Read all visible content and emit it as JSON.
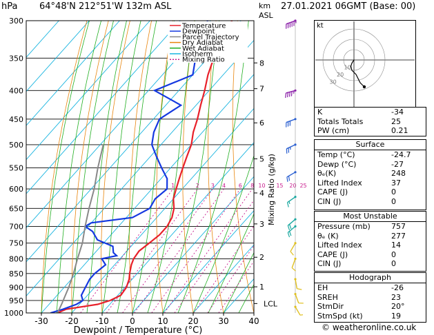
{
  "header": {
    "hpa_label": "hPa",
    "location": "64°48'N  212°51'W  132m  ASL",
    "km_label": "km",
    "asl_label": "ASL",
    "datetime": "27.01.2021  06GMT  (Base: 00)"
  },
  "chart_data": {
    "type": "line",
    "title": "Skew-T log-P diagram",
    "xlabel": "Dewpoint / Temperature (°C)",
    "ylabel": "hPa",
    "right_axis_label": "Mixing Ratio (g/kg)",
    "xlim": [
      -35,
      40
    ],
    "ylim": [
      1000,
      300
    ],
    "x_ticks": [
      -30,
      -20,
      -10,
      0,
      10,
      20,
      30,
      40
    ],
    "pressure_levels": [
      300,
      350,
      400,
      450,
      500,
      550,
      600,
      650,
      700,
      750,
      800,
      850,
      900,
      950,
      1000
    ],
    "km_ticks": [
      {
        "label": "8",
        "p": 357
      },
      {
        "label": "7",
        "p": 397
      },
      {
        "label": "6",
        "p": 457
      },
      {
        "label": "5",
        "p": 530
      },
      {
        "label": "4",
        "p": 610
      },
      {
        "label": "3",
        "p": 693
      },
      {
        "label": "2",
        "p": 795
      },
      {
        "label": "1",
        "p": 898
      },
      {
        "label": "LCL",
        "p": 962
      }
    ],
    "mixing_ratio_labels": [
      "1",
      "2",
      "3",
      "4",
      "6",
      "8",
      "10",
      "15",
      "20",
      "25"
    ],
    "mixing_ratio_values": [
      1,
      2,
      3,
      4,
      6,
      8,
      10,
      15,
      20,
      25
    ],
    "legend": [
      {
        "name": "Temperature",
        "color": "#e8202a"
      },
      {
        "name": "Dewpoint",
        "color": "#1438e0"
      },
      {
        "name": "Parcel Trajectory",
        "color": "#888888"
      },
      {
        "name": "Dry Adiabat",
        "color": "#e8850c"
      },
      {
        "name": "Wet Adiabat",
        "color": "#1fae1f"
      },
      {
        "name": "Isotherm",
        "color": "#19b5e0"
      },
      {
        "name": "Mixing Ratio",
        "color": "#c8188c"
      }
    ],
    "series": [
      {
        "name": "Temperature",
        "color": "#e8202a",
        "points": [
          [
            1000,
            -24.7
          ],
          [
            985,
            -23
          ],
          [
            965,
            -14
          ],
          [
            950,
            -11
          ],
          [
            930,
            -9
          ],
          [
            900,
            -9.5
          ],
          [
            870,
            -11
          ],
          [
            850,
            -12.5
          ],
          [
            820,
            -14.5
          ],
          [
            800,
            -15.5
          ],
          [
            775,
            -16
          ],
          [
            750,
            -15
          ],
          [
            725,
            -14
          ],
          [
            700,
            -14
          ],
          [
            675,
            -15
          ],
          [
            650,
            -17
          ],
          [
            625,
            -20
          ],
          [
            600,
            -22
          ],
          [
            575,
            -24
          ],
          [
            550,
            -26
          ],
          [
            525,
            -28
          ],
          [
            500,
            -30
          ],
          [
            475,
            -33
          ],
          [
            450,
            -35.5
          ],
          [
            425,
            -38.5
          ],
          [
            400,
            -41.5
          ],
          [
            375,
            -45
          ],
          [
            350,
            -48
          ],
          [
            325,
            -51
          ],
          [
            300,
            -53
          ]
        ]
      },
      {
        "name": "Dewpoint",
        "color": "#1438e0",
        "points": [
          [
            1000,
            -27
          ],
          [
            985,
            -24
          ],
          [
            965,
            -21
          ],
          [
            950,
            -20
          ],
          [
            930,
            -22
          ],
          [
            900,
            -23
          ],
          [
            870,
            -24
          ],
          [
            850,
            -24
          ],
          [
            820,
            -23
          ],
          [
            800,
            -26
          ],
          [
            790,
            -22
          ],
          [
            780,
            -24
          ],
          [
            760,
            -26
          ],
          [
            740,
            -33
          ],
          [
            715,
            -37
          ],
          [
            700,
            -41
          ],
          [
            690,
            -40
          ],
          [
            675,
            -28
          ],
          [
            650,
            -25
          ],
          [
            625,
            -26
          ],
          [
            600,
            -25
          ],
          [
            575,
            -28
          ],
          [
            550,
            -33
          ],
          [
            525,
            -38
          ],
          [
            500,
            -43
          ],
          [
            475,
            -46
          ],
          [
            450,
            -48
          ],
          [
            425,
            -45
          ],
          [
            400,
            -58
          ],
          [
            375,
            -50
          ],
          [
            350,
            -54
          ],
          [
            325,
            -58
          ],
          [
            300,
            -61
          ]
        ]
      },
      {
        "name": "Parcel Trajectory",
        "color": "#888888",
        "points": [
          [
            1000,
            -24.7
          ],
          [
            962,
            -26
          ],
          [
            900,
            -28.5
          ],
          [
            850,
            -31
          ],
          [
            800,
            -34
          ],
          [
            750,
            -37
          ],
          [
            700,
            -41
          ],
          [
            650,
            -45
          ],
          [
            600,
            -49
          ],
          [
            550,
            -54
          ],
          [
            500,
            -59
          ]
        ]
      }
    ]
  },
  "wind_profile": [
    {
      "p": 300,
      "dir": 250,
      "spd": 55
    },
    {
      "p": 400,
      "dir": 255,
      "spd": 45
    },
    {
      "p": 450,
      "dir": 250,
      "spd": 30
    },
    {
      "p": 500,
      "dir": 245,
      "spd": 25
    },
    {
      "p": 560,
      "dir": 240,
      "spd": 20
    },
    {
      "p": 620,
      "dir": 235,
      "spd": 15
    },
    {
      "p": 680,
      "dir": 230,
      "spd": 20
    },
    {
      "p": 700,
      "dir": 230,
      "spd": 20
    },
    {
      "p": 750,
      "dir": 210,
      "spd": 10
    },
    {
      "p": 800,
      "dir": 200,
      "spd": 10
    },
    {
      "p": 870,
      "dir": 170,
      "spd": 10
    },
    {
      "p": 925,
      "dir": 160,
      "spd": 10
    },
    {
      "p": 975,
      "dir": 150,
      "spd": 5
    }
  ],
  "hodograph": {
    "label": "kt",
    "ring_labels": [
      "10",
      "20",
      "30"
    ],
    "points": [
      [
        0,
        0
      ],
      [
        -2,
        -3
      ],
      [
        -3,
        -6
      ],
      [
        -2,
        -10
      ],
      [
        2,
        -14
      ],
      [
        4,
        -18
      ],
      [
        6,
        -22
      ],
      [
        10,
        -26
      ]
    ]
  },
  "indices": {
    "k_label": "K",
    "k_value": "-34",
    "tt_label": "Totals Totals",
    "tt_value": "25",
    "pw_label": "PW (cm)",
    "pw_value": "0.21"
  },
  "surface": {
    "header": "Surface",
    "temp_label": "Temp (°C)",
    "temp_value": "-24.7",
    "dewp_label": "Dewp (°C)",
    "dewp_value": "-27",
    "thetae_label": "θₑ(K)",
    "thetae_value": "248",
    "li_label": "Lifted Index",
    "li_value": "37",
    "cape_label": "CAPE (J)",
    "cape_value": "0",
    "cin_label": "CIN (J)",
    "cin_value": "0"
  },
  "most_unstable": {
    "header": "Most Unstable",
    "pres_label": "Pressure (mb)",
    "pres_value": "757",
    "thetae_label": "θₑ (K)",
    "thetae_value": "277",
    "li_label": "Lifted Index",
    "li_value": "14",
    "cape_label": "CAPE (J)",
    "cape_value": "0",
    "cin_label": "CIN (J)",
    "cin_value": "0"
  },
  "hodo_table": {
    "header": "Hodograph",
    "eh_label": "EH",
    "eh_value": "-26",
    "sreh_label": "SREH",
    "sreh_value": "23",
    "stmdir_label": "StmDir",
    "stmdir_value": "20°",
    "stmspd_label": "StmSpd (kt)",
    "stmspd_value": "19"
  },
  "credit": "© weatheronline.co.uk"
}
